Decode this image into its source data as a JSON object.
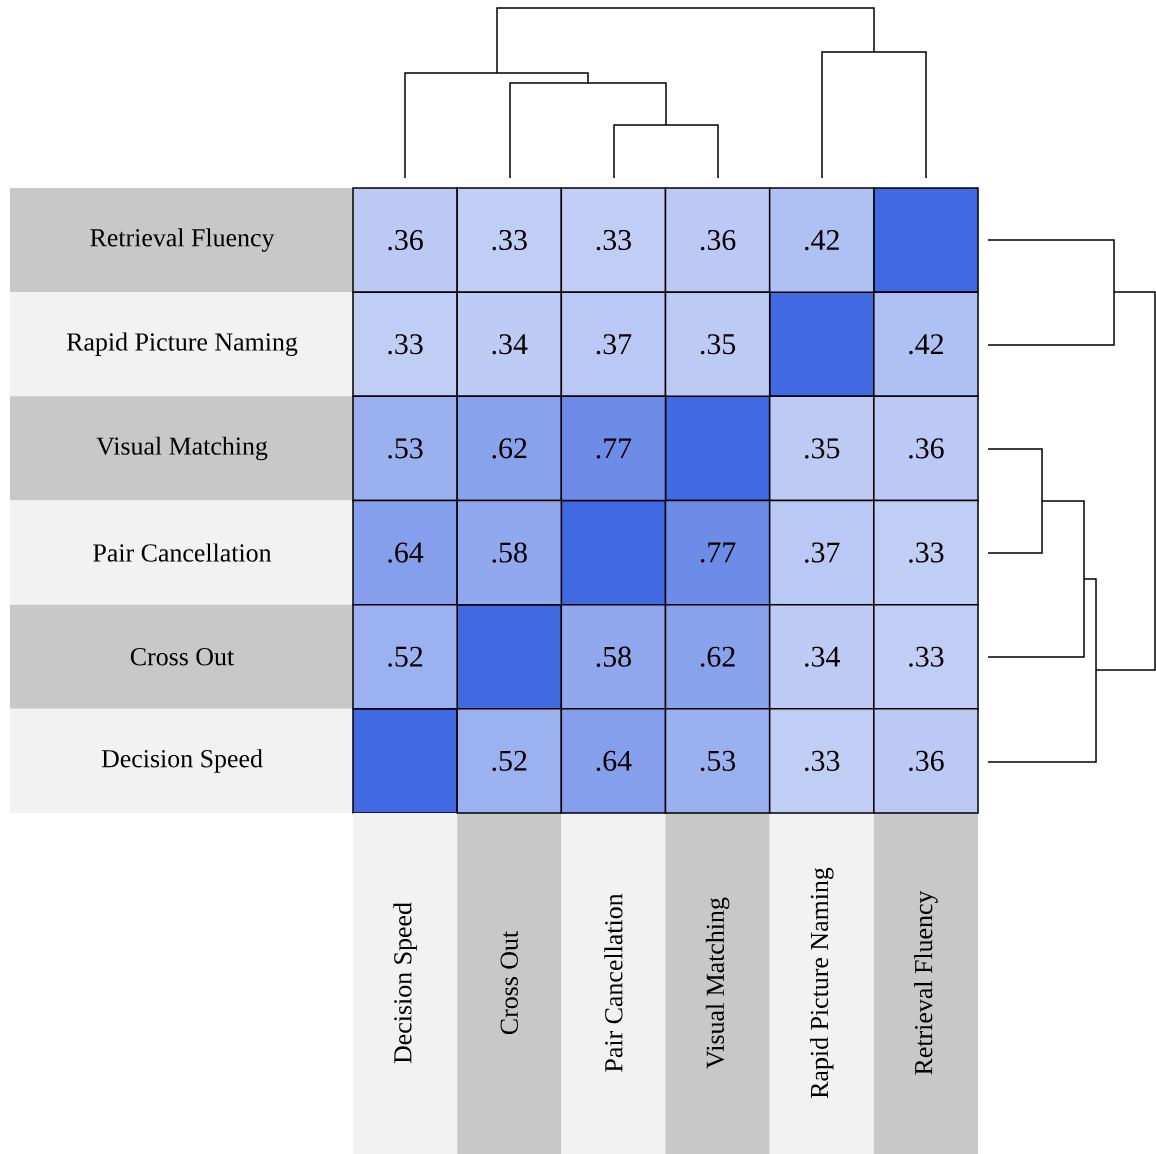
{
  "chart_data": {
    "type": "heatmap",
    "categories": [
      "Decision Speed",
      "Cross Out",
      "Pair Cancellation",
      "Visual Matching",
      "Rapid Picture Naming",
      "Retrieval Fluency"
    ],
    "y_categories": [
      "Retrieval Fluency",
      "Rapid Picture Naming",
      "Visual Matching",
      "Pair Cancellation",
      "Cross Out",
      "Decision Speed"
    ],
    "cells": [
      [
        0.36,
        0.33,
        0.33,
        0.36,
        0.42,
        null
      ],
      [
        0.33,
        0.34,
        0.37,
        0.35,
        null,
        0.42
      ],
      [
        0.53,
        0.62,
        0.77,
        null,
        0.35,
        0.36
      ],
      [
        0.64,
        0.58,
        null,
        0.77,
        0.37,
        0.33
      ],
      [
        0.52,
        null,
        0.58,
        0.62,
        0.34,
        0.33
      ],
      [
        null,
        0.52,
        0.64,
        0.53,
        0.33,
        0.36
      ]
    ],
    "cell_labels": [
      [
        ".36",
        ".33",
        ".33",
        ".36",
        ".42",
        null
      ],
      [
        ".33",
        ".34",
        ".37",
        ".35",
        null,
        ".42"
      ],
      [
        ".53",
        ".62",
        ".77",
        null,
        ".35",
        ".36"
      ],
      [
        ".64",
        ".58",
        null,
        ".77",
        ".37",
        ".33"
      ],
      [
        ".52",
        null,
        ".58",
        ".62",
        ".34",
        ".33"
      ],
      [
        null,
        ".52",
        ".64",
        ".53",
        ".33",
        ".36"
      ]
    ]
  }
}
